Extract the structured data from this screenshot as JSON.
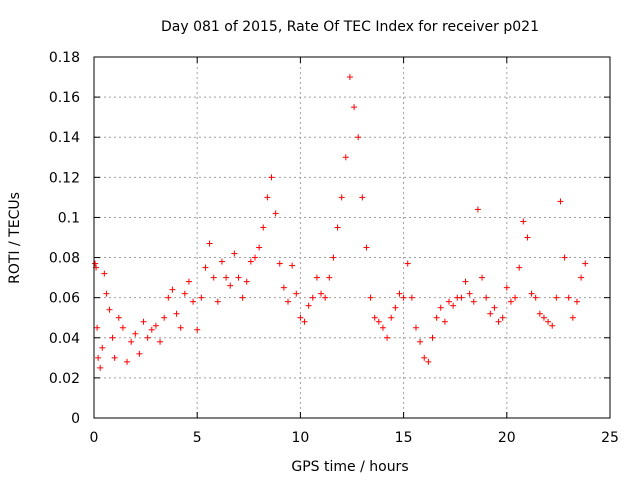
{
  "chart_data": {
    "type": "scatter",
    "title": "Day 081 of 2015, Rate Of TEC Index for receiver p021",
    "xlabel": "GPS time / hours",
    "ylabel": "ROTI / TECUs",
    "xlim": [
      0,
      25
    ],
    "ylim": [
      0,
      0.18
    ],
    "xticks": [
      0,
      5,
      10,
      15,
      20,
      25
    ],
    "xtick_labels": [
      "0",
      "5",
      "10",
      "15",
      "20",
      "25"
    ],
    "yticks": [
      0,
      0.02,
      0.04,
      0.06,
      0.08,
      0.1,
      0.12,
      0.14,
      0.16,
      0.18
    ],
    "ytick_labels": [
      "0",
      "0.02",
      "0.04",
      "0.06",
      "0.08",
      "0.1",
      "0.12",
      "0.14",
      "0.16",
      "0.18"
    ],
    "grid": true,
    "marker": "+",
    "color": "#ff0000",
    "series": [
      {
        "x": [
          0.05,
          0.1,
          0.15,
          0.2,
          0.3,
          0.4,
          0.5,
          0.6,
          0.75,
          0.9,
          1.0,
          1.2,
          1.4,
          1.6,
          1.8,
          2.0,
          2.2,
          2.4,
          2.6,
          2.8,
          3.0,
          3.2,
          3.4,
          3.6,
          3.8,
          4.0,
          4.2,
          4.4,
          4.6,
          4.8,
          5.0,
          5.2,
          5.4,
          5.6,
          5.8,
          6.0,
          6.2,
          6.4,
          6.6,
          6.8,
          7.0,
          7.2,
          7.4,
          7.6,
          7.8,
          8.0,
          8.2,
          8.4,
          8.6,
          8.8,
          9.0,
          9.2,
          9.4,
          9.6,
          9.8,
          10.0,
          10.2,
          10.4,
          10.6,
          10.8,
          11.0,
          11.2,
          11.4,
          11.6,
          11.8,
          12.0,
          12.2,
          12.4,
          12.6,
          12.8,
          13.0,
          13.2,
          13.4,
          13.6,
          13.8,
          14.0,
          14.2,
          14.4,
          14.6,
          14.8,
          15.0,
          15.2,
          15.4,
          15.6,
          15.8,
          16.0,
          16.2,
          16.4,
          16.6,
          16.8,
          17.0,
          17.2,
          17.4,
          17.6,
          17.8,
          18.0,
          18.2,
          18.4,
          18.6,
          18.8,
          19.0,
          19.2,
          19.4,
          19.6,
          19.8,
          20.0,
          20.2,
          20.4,
          20.6,
          20.8,
          21.0,
          21.2,
          21.4,
          21.6,
          21.8,
          22.0,
          22.2,
          22.4,
          22.6,
          22.8,
          23.0,
          23.2,
          23.4,
          23.6,
          23.8
        ],
        "y": [
          0.077,
          0.075,
          0.045,
          0.03,
          0.025,
          0.035,
          0.072,
          0.062,
          0.054,
          0.04,
          0.03,
          0.05,
          0.045,
          0.028,
          0.038,
          0.042,
          0.032,
          0.048,
          0.04,
          0.044,
          0.046,
          0.038,
          0.05,
          0.06,
          0.064,
          0.052,
          0.045,
          0.062,
          0.068,
          0.058,
          0.044,
          0.06,
          0.075,
          0.087,
          0.07,
          0.058,
          0.078,
          0.07,
          0.066,
          0.082,
          0.07,
          0.06,
          0.068,
          0.078,
          0.08,
          0.085,
          0.095,
          0.11,
          0.12,
          0.102,
          0.077,
          0.065,
          0.058,
          0.076,
          0.062,
          0.05,
          0.048,
          0.056,
          0.06,
          0.07,
          0.062,
          0.06,
          0.07,
          0.08,
          0.095,
          0.11,
          0.13,
          0.17,
          0.155,
          0.14,
          0.11,
          0.085,
          0.06,
          0.05,
          0.048,
          0.045,
          0.04,
          0.05,
          0.055,
          0.062,
          0.06,
          0.077,
          0.06,
          0.045,
          0.038,
          0.03,
          0.028,
          0.04,
          0.05,
          0.055,
          0.048,
          0.058,
          0.056,
          0.06,
          0.06,
          0.068,
          0.062,
          0.058,
          0.104,
          0.07,
          0.06,
          0.052,
          0.055,
          0.048,
          0.05,
          0.065,
          0.058,
          0.06,
          0.075,
          0.098,
          0.09,
          0.062,
          0.06,
          0.052,
          0.05,
          0.048,
          0.046,
          0.06,
          0.108,
          0.08,
          0.06,
          0.05,
          0.058,
          0.07,
          0.077
        ]
      }
    ]
  }
}
